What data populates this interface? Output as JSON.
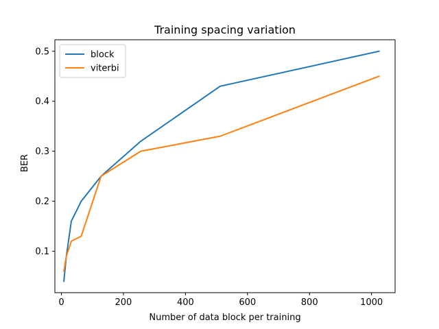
{
  "chart_data": {
    "type": "line",
    "title": "Training spacing variation",
    "xlabel": "Number of data block per training",
    "ylabel": "BER",
    "xlim": [
      -21,
      1076
    ],
    "ylim": [
      0.017,
      0.523
    ],
    "xticks": [
      0,
      200,
      400,
      600,
      800,
      1000
    ],
    "yticks": [
      0.1,
      0.2,
      0.3,
      0.4,
      0.5
    ],
    "ytick_labels": [
      "0.1",
      "0.2",
      "0.3",
      "0.4",
      "0.5"
    ],
    "grid": false,
    "legend_position": "top-left",
    "x": [
      8,
      16,
      32,
      64,
      128,
      256,
      512,
      1024
    ],
    "series": [
      {
        "name": "block",
        "color": "#1f77b4",
        "values": [
          0.04,
          0.09,
          0.16,
          0.2,
          0.25,
          0.32,
          0.43,
          0.5
        ]
      },
      {
        "name": "viterbi",
        "color": "#ff7f0e",
        "values": [
          0.06,
          0.09,
          0.12,
          0.13,
          0.25,
          0.3,
          0.33,
          0.45
        ]
      }
    ]
  }
}
